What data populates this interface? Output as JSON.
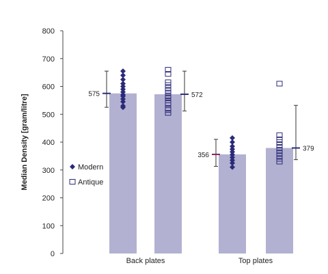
{
  "chart_data": {
    "type": "bar",
    "title": "",
    "xlabel": "",
    "ylabel": "Median Density [gram/litre]",
    "ylim": [
      0,
      800
    ],
    "yticks": [
      0,
      100,
      200,
      300,
      400,
      500,
      600,
      700,
      800
    ],
    "categories": [
      "Back plates",
      "Top plates"
    ],
    "series": [
      {
        "name": "Modern",
        "marker": "filled-diamond",
        "values": [
          575,
          356
        ]
      },
      {
        "name": "Antique",
        "marker": "open-square",
        "values": [
          572,
          379
        ]
      }
    ],
    "points": {
      "Back plates": {
        "Modern": [
          655,
          640,
          625,
          610,
          600,
          590,
          580,
          570,
          565,
          555,
          545,
          530,
          525
        ],
        "Antique": [
          660,
          645,
          615,
          605,
          595,
          585,
          575,
          565,
          560,
          550,
          540,
          520,
          515,
          505
        ]
      },
      "Top plates": {
        "Modern": [
          415,
          400,
          385,
          375,
          365,
          355,
          345,
          335,
          325,
          310
        ],
        "Antique": [
          610,
          425,
          410,
          400,
          390,
          380,
          370,
          360,
          350,
          340,
          330
        ]
      }
    },
    "whiskers": {
      "Back plates": {
        "Modern": [
          525,
          655
        ],
        "Antique": [
          512,
          655
        ]
      },
      "Top plates": {
        "Modern": [
          313,
          410
        ],
        "Antique": [
          337,
          532
        ]
      }
    },
    "data_labels": {
      "Back plates": {
        "Modern": "575",
        "Antique": "572"
      },
      "Top plates": {
        "Modern": "356",
        "Antique": "379"
      }
    },
    "legend": {
      "placement": "left-inside",
      "items": [
        "Modern",
        "Antique"
      ]
    },
    "grid": false,
    "colors": {
      "bar": "#b3b1d1",
      "marker": "#2b2a78",
      "median_modern": "#8a1f5a",
      "median_antique": "#2b2a78",
      "axis": "#444444"
    }
  }
}
